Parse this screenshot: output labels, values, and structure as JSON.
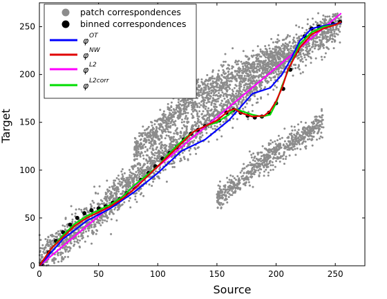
{
  "chart_data": {
    "type": "scatter",
    "xlabel": "Source",
    "ylabel": "Target",
    "xlim": [
      0,
      275
    ],
    "ylim": [
      0,
      275
    ],
    "x_ticks": [
      0,
      50,
      100,
      150,
      200,
      250
    ],
    "y_ticks": [
      0,
      50,
      100,
      150,
      200,
      250
    ],
    "grid": false,
    "legend_position": "top-left",
    "colors": {
      "patch": "#8c8c8c",
      "binned": "#000000",
      "ot": "#0000ff",
      "nw": "#e00000",
      "l2": "#ff00ff",
      "l2corr": "#00dd00"
    },
    "scatter_clusters": {
      "main": {
        "x_range": [
          0,
          255
        ],
        "y_center_line": [
          [
            0,
            5
          ],
          [
            50,
            55
          ],
          [
            100,
            110
          ],
          [
            150,
            160
          ],
          [
            200,
            210
          ],
          [
            255,
            255
          ]
        ],
        "spread": 18
      },
      "upper": {
        "x_range": [
          80,
          210
        ],
        "y_center_line": [
          [
            80,
            120
          ],
          [
            130,
            175
          ],
          [
            180,
            210
          ],
          [
            210,
            225
          ]
        ],
        "spread": 14
      },
      "lower": {
        "x_range": [
          150,
          240
        ],
        "y_center_line": [
          [
            150,
            70
          ],
          [
            190,
            110
          ],
          [
            240,
            150
          ]
        ],
        "spread": 12
      }
    },
    "series": [
      {
        "name": "patch correspondences",
        "kind": "scatter"
      },
      {
        "name": "binned correspondences",
        "kind": "points",
        "x": [
          2,
          8,
          14,
          20,
          26,
          32,
          38,
          44,
          50,
          56,
          62,
          68,
          74,
          80,
          86,
          92,
          98,
          104,
          110,
          116,
          122,
          128,
          134,
          140,
          146,
          152,
          158,
          164,
          170,
          176,
          182,
          188,
          194,
          200,
          206,
          212,
          218,
          224,
          230,
          236,
          242,
          248,
          254
        ],
        "y": [
          2,
          14,
          26,
          35,
          43,
          50,
          55,
          58,
          60,
          62,
          66,
          70,
          76,
          82,
          90,
          97,
          104,
          112,
          118,
          124,
          132,
          138,
          142,
          146,
          150,
          152,
          160,
          163,
          160,
          157,
          155,
          156,
          160,
          170,
          185,
          205,
          225,
          240,
          248,
          250,
          250,
          253,
          255
        ]
      },
      {
        "name": "φ^OT",
        "symbol": "φ",
        "sup": "OT",
        "kind": "line",
        "x": [
          0,
          20,
          40,
          60,
          80,
          100,
          120,
          140,
          160,
          180,
          195,
          205,
          212,
          220,
          230,
          240,
          255
        ],
        "y": [
          0,
          28,
          47,
          60,
          77,
          97,
          120,
          132,
          152,
          180,
          186,
          200,
          215,
          235,
          248,
          251,
          254
        ]
      },
      {
        "name": "φ^NW",
        "symbol": "φ",
        "sup": "NW",
        "kind": "line",
        "x": [
          0,
          10,
          20,
          30,
          40,
          50,
          60,
          70,
          80,
          90,
          100,
          110,
          120,
          130,
          140,
          150,
          160,
          165,
          170,
          180,
          190,
          195,
          200,
          205,
          210,
          220,
          230,
          240,
          250,
          255
        ],
        "y": [
          0,
          18,
          30,
          42,
          50,
          56,
          62,
          70,
          80,
          92,
          104,
          116,
          128,
          140,
          146,
          152,
          162,
          164,
          160,
          156,
          157,
          162,
          172,
          186,
          205,
          228,
          242,
          248,
          252,
          255
        ]
      },
      {
        "name": "φ^L2",
        "symbol": "φ",
        "sup": "L2",
        "kind": "line",
        "x": [
          0,
          255
        ],
        "y": [
          0,
          264
        ]
      },
      {
        "name": "φ^L2corr",
        "symbol": "φ",
        "sup": "L2corr",
        "kind": "line",
        "x": [
          0,
          10,
          20,
          30,
          40,
          50,
          60,
          70,
          80,
          90,
          100,
          110,
          120,
          130,
          140,
          150,
          160,
          165,
          170,
          180,
          188,
          195,
          200,
          205,
          212,
          220,
          230,
          240,
          250,
          255
        ],
        "y": [
          0,
          18,
          32,
          44,
          52,
          58,
          64,
          72,
          84,
          94,
          104,
          118,
          130,
          140,
          146,
          150,
          158,
          164,
          162,
          158,
          156,
          158,
          170,
          188,
          210,
          232,
          244,
          250,
          252,
          255
        ]
      }
    ]
  }
}
